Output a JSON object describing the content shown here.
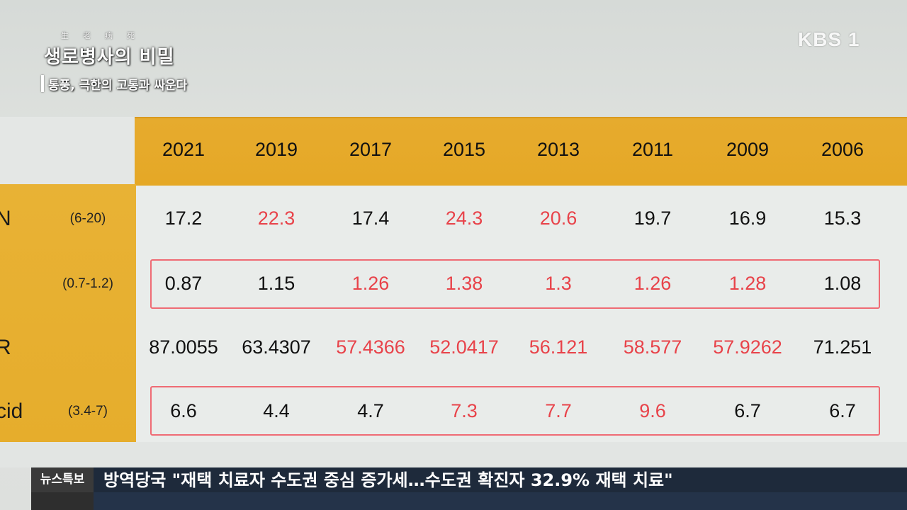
{
  "program": {
    "hanja": "生老病死",
    "title": "생로병사의 비밀",
    "subtitle": "통풍, 극한의 고통과 싸운다"
  },
  "broadcaster": {
    "logo": "KBS 1"
  },
  "table": {
    "years": [
      "2021",
      "2019",
      "2017",
      "2015",
      "2013",
      "2011",
      "2009",
      "2006"
    ],
    "rows": [
      {
        "label": "N",
        "range": "(6-20)",
        "values": [
          "17.2",
          "22.3",
          "17.4",
          "24.3",
          "20.6",
          "19.7",
          "16.9",
          "15.3"
        ],
        "highlighted": [
          false,
          true,
          false,
          true,
          true,
          false,
          false,
          false
        ]
      },
      {
        "label": "",
        "range": "(0.7-1.2)",
        "values": [
          "0.87",
          "1.15",
          "1.26",
          "1.38",
          "1.3",
          "1.26",
          "1.28",
          "1.08"
        ],
        "highlighted": [
          false,
          false,
          true,
          true,
          true,
          true,
          true,
          false
        ]
      },
      {
        "label": "R",
        "range": "",
        "values": [
          "87.0055",
          "63.4307",
          "57.4366",
          "52.0417",
          "56.121",
          "58.577",
          "57.9262",
          "71.251"
        ],
        "highlighted": [
          false,
          false,
          true,
          true,
          true,
          true,
          true,
          false
        ]
      },
      {
        "label": "cid",
        "range": "(3.4-7)",
        "values": [
          "6.6",
          "4.4",
          "4.7",
          "7.3",
          "7.7",
          "9.6",
          "6.7",
          "6.7"
        ],
        "highlighted": [
          false,
          false,
          false,
          true,
          true,
          true,
          false,
          false
        ]
      }
    ],
    "colors": {
      "header": "#e6ab2e",
      "abnormal": "#e8434a",
      "normal": "#111111",
      "box": "#ef6b74"
    }
  },
  "ticker": {
    "badge": "뉴스특보",
    "text": "방역당국 \"재택 치료자 수도권 중심 증가세…수도권 확진자 32.9% 재택 치료\""
  }
}
